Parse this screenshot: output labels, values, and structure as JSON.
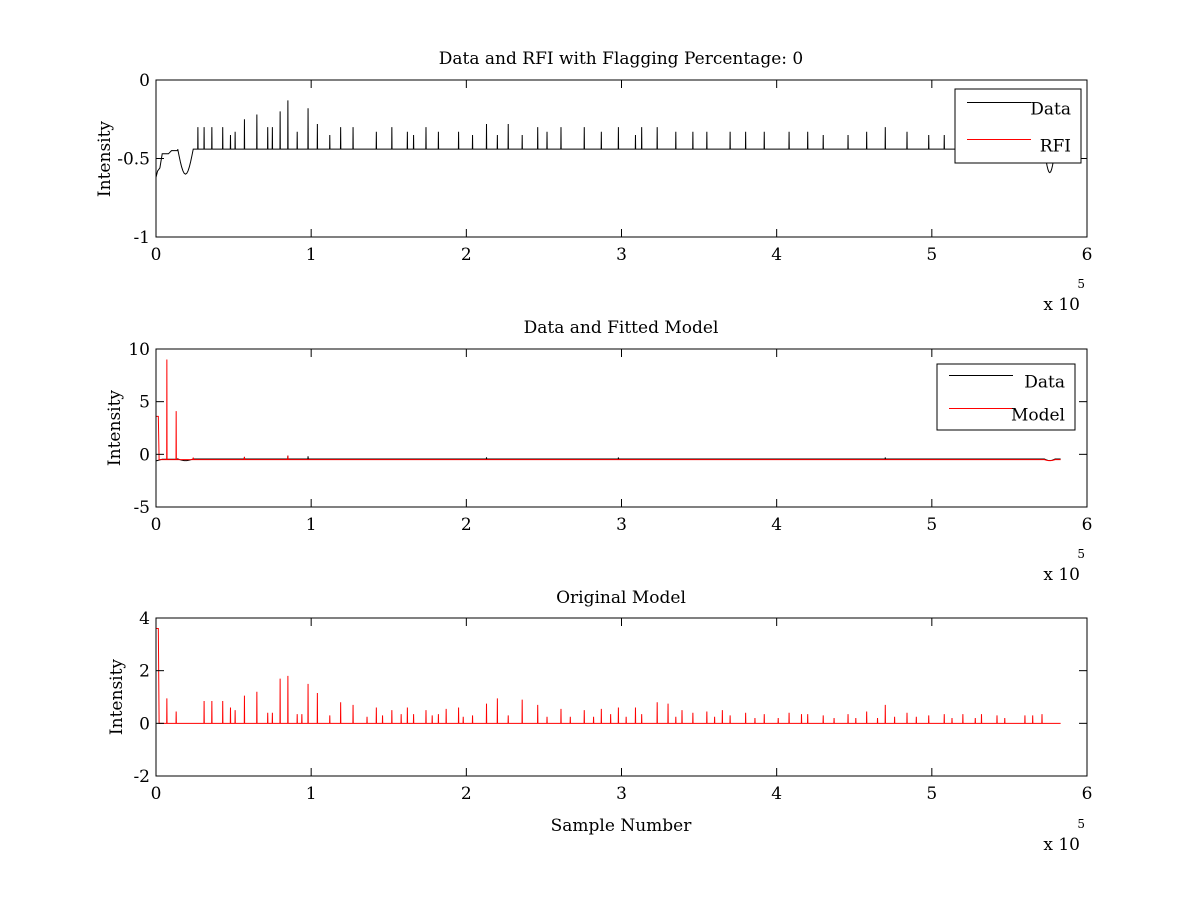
{
  "figure": {
    "background": "#ffffff"
  },
  "chart_data": [
    {
      "type": "line",
      "title": "Data and RFI with Flagging Percentage: 0",
      "xlabel": "",
      "ylabel": "Intensity",
      "xlim": [
        0,
        600000
      ],
      "ylim": [
        -1,
        0
      ],
      "xticks": [
        0,
        100000,
        200000,
        300000,
        400000,
        500000,
        600000
      ],
      "xtick_labels": [
        "0",
        "1",
        "2",
        "3",
        "4",
        "5",
        "6"
      ],
      "yticks": [
        -1,
        -0.5,
        0
      ],
      "ytick_labels": [
        "-1",
        "-0.5",
        "0"
      ],
      "x_multiplier": {
        "base": "x 10",
        "exponent": "5"
      },
      "legend": {
        "position": "top-right",
        "entries": [
          "Data",
          "RFI"
        ]
      },
      "series": [
        {
          "name": "Data",
          "color": "#000000",
          "baseline": -0.44,
          "x_end": 583000,
          "start_ramp": [
            [
              0,
              -0.62
            ],
            [
              1000,
              -0.58
            ],
            [
              2500,
              -0.56
            ],
            [
              4000,
              -0.47
            ],
            [
              8000,
              -0.47
            ],
            [
              10000,
              -0.45
            ],
            [
              14000,
              -0.45
            ]
          ],
          "dips": [
            [
              19000,
              -0.6,
              5000
            ],
            [
              576000,
              -0.59,
              3500
            ]
          ],
          "step": [
            23000,
            27500,
            -0.44
          ],
          "spikes": [
            [
              6000,
              -0.3
            ],
            [
              9000,
              -0.38
            ],
            [
              14000,
              -0.35
            ],
            [
              20000,
              -0.38
            ],
            [
              24000,
              -0.3
            ],
            [
              27000,
              -0.3
            ],
            [
              31000,
              -0.3
            ],
            [
              36000,
              -0.3
            ],
            [
              43000,
              -0.3
            ],
            [
              48000,
              -0.35
            ],
            [
              51000,
              -0.33
            ],
            [
              57000,
              -0.25
            ],
            [
              65000,
              -0.22
            ],
            [
              72000,
              -0.3
            ],
            [
              75000,
              -0.3
            ],
            [
              80000,
              -0.2
            ],
            [
              85000,
              -0.13
            ],
            [
              91000,
              -0.33
            ],
            [
              98000,
              -0.18
            ],
            [
              104000,
              -0.28
            ],
            [
              112000,
              -0.35
            ],
            [
              119000,
              -0.3
            ],
            [
              127000,
              -0.3
            ],
            [
              142000,
              -0.33
            ],
            [
              152000,
              -0.3
            ],
            [
              162000,
              -0.33
            ],
            [
              166000,
              -0.35
            ],
            [
              174000,
              -0.3
            ],
            [
              182000,
              -0.33
            ],
            [
              195000,
              -0.33
            ],
            [
              204000,
              -0.35
            ],
            [
              213000,
              -0.28
            ],
            [
              220000,
              -0.35
            ],
            [
              227000,
              -0.28
            ],
            [
              236000,
              -0.35
            ],
            [
              246000,
              -0.3
            ],
            [
              252000,
              -0.33
            ],
            [
              261000,
              -0.3
            ],
            [
              276000,
              -0.3
            ],
            [
              287000,
              -0.33
            ],
            [
              298000,
              -0.3
            ],
            [
              309000,
              -0.35
            ],
            [
              313000,
              -0.3
            ],
            [
              323000,
              -0.3
            ],
            [
              335000,
              -0.33
            ],
            [
              346000,
              -0.33
            ],
            [
              355000,
              -0.33
            ],
            [
              370000,
              -0.33
            ],
            [
              380000,
              -0.33
            ],
            [
              392000,
              -0.33
            ],
            [
              408000,
              -0.33
            ],
            [
              420000,
              -0.33
            ],
            [
              430000,
              -0.35
            ],
            [
              446000,
              -0.35
            ],
            [
              458000,
              -0.33
            ],
            [
              470000,
              -0.3
            ],
            [
              484000,
              -0.33
            ],
            [
              498000,
              -0.35
            ],
            [
              508000,
              -0.35
            ],
            [
              520000,
              -0.33
            ],
            [
              532000,
              -0.3
            ],
            [
              542000,
              -0.33
            ],
            [
              550000,
              -0.33
            ],
            [
              560000,
              -0.33
            ],
            [
              571000,
              -0.33
            ]
          ]
        },
        {
          "name": "RFI",
          "color": "#ff0000",
          "values": []
        }
      ]
    },
    {
      "type": "line",
      "title": "Data and Fitted Model",
      "xlabel": "",
      "ylabel": "Intensity",
      "xlim": [
        0,
        600000
      ],
      "ylim": [
        -5,
        10
      ],
      "xticks": [
        0,
        100000,
        200000,
        300000,
        400000,
        500000,
        600000
      ],
      "xtick_labels": [
        "0",
        "1",
        "2",
        "3",
        "4",
        "5",
        "6"
      ],
      "yticks": [
        -5,
        0,
        5,
        10
      ],
      "ytick_labels": [
        "-5",
        "0",
        "5",
        "10"
      ],
      "x_multiplier": {
        "base": "x 10",
        "exponent": "5"
      },
      "legend": {
        "position": "top-right",
        "entries": [
          "Data",
          "Model"
        ]
      },
      "series": [
        {
          "name": "Data",
          "color": "#000000",
          "baseline": -0.44,
          "x_end": 583000,
          "start_ramp": [
            [
              0,
              -0.62
            ],
            [
              4000,
              -0.47
            ],
            [
              14000,
              -0.45
            ]
          ],
          "dips": [
            [
              19000,
              -0.6,
              5000
            ],
            [
              576000,
              -0.59,
              3500
            ]
          ],
          "step": [
            23000,
            27500,
            -0.44
          ],
          "spikes": [
            [
              57000,
              -0.25
            ],
            [
              85000,
              -0.13
            ],
            [
              98000,
              -0.18
            ],
            [
              213000,
              -0.28
            ],
            [
              298000,
              -0.3
            ],
            [
              470000,
              -0.3
            ]
          ]
        },
        {
          "name": "Model",
          "color": "#ff0000",
          "baseline": -0.5,
          "x_end": 583000,
          "start_ramp": [
            [
              0,
              3.6
            ],
            [
              1500,
              3.6
            ],
            [
              2000,
              -0.5
            ]
          ],
          "dips": [
            [
              576000,
              -0.6,
              3500
            ]
          ],
          "spikes": [
            [
              7000,
              9.0
            ],
            [
              13000,
              4.1
            ],
            [
              24000,
              -0.3
            ],
            [
              57000,
              -0.25
            ],
            [
              85000,
              -0.13
            ]
          ]
        }
      ]
    },
    {
      "type": "line",
      "title": "Original Model",
      "xlabel": "Sample Number",
      "ylabel": "Intensity",
      "xlim": [
        0,
        600000
      ],
      "ylim": [
        -2,
        4
      ],
      "xticks": [
        0,
        100000,
        200000,
        300000,
        400000,
        500000,
        600000
      ],
      "xtick_labels": [
        "0",
        "1",
        "2",
        "3",
        "4",
        "5",
        "6"
      ],
      "yticks": [
        -2,
        0,
        2,
        4
      ],
      "ytick_labels": [
        "-2",
        "0",
        "2",
        "4"
      ],
      "x_multiplier": {
        "base": "x 10",
        "exponent": "5"
      },
      "series": [
        {
          "name": "Original Model",
          "color": "#ff0000",
          "baseline": 0,
          "x_end": 583000,
          "start_ramp": [
            [
              0,
              3.6
            ],
            [
              1500,
              3.6
            ],
            [
              2000,
              0
            ]
          ],
          "spikes": [
            [
              7000,
              0.95
            ],
            [
              13000,
              0.45
            ],
            [
              31000,
              0.85
            ],
            [
              36000,
              0.85
            ],
            [
              43000,
              0.85
            ],
            [
              48000,
              0.6
            ],
            [
              51000,
              0.5
            ],
            [
              57000,
              1.05
            ],
            [
              65000,
              1.2
            ],
            [
              72000,
              0.4
            ],
            [
              75000,
              0.4
            ],
            [
              80000,
              1.7
            ],
            [
              85000,
              1.8
            ],
            [
              91000,
              0.35
            ],
            [
              94000,
              0.35
            ],
            [
              98000,
              1.5
            ],
            [
              104000,
              1.15
            ],
            [
              112000,
              0.3
            ],
            [
              119000,
              0.8
            ],
            [
              127000,
              0.7
            ],
            [
              136000,
              0.25
            ],
            [
              142000,
              0.6
            ],
            [
              146000,
              0.3
            ],
            [
              152000,
              0.5
            ],
            [
              158000,
              0.35
            ],
            [
              162000,
              0.6
            ],
            [
              166000,
              0.35
            ],
            [
              174000,
              0.5
            ],
            [
              178000,
              0.3
            ],
            [
              182000,
              0.35
            ],
            [
              187000,
              0.55
            ],
            [
              195000,
              0.6
            ],
            [
              198000,
              0.25
            ],
            [
              204000,
              0.3
            ],
            [
              213000,
              0.75
            ],
            [
              220000,
              0.95
            ],
            [
              227000,
              0.3
            ],
            [
              236000,
              0.9
            ],
            [
              246000,
              0.7
            ],
            [
              252000,
              0.25
            ],
            [
              261000,
              0.55
            ],
            [
              267000,
              0.25
            ],
            [
              276000,
              0.5
            ],
            [
              282000,
              0.25
            ],
            [
              287000,
              0.55
            ],
            [
              293000,
              0.35
            ],
            [
              298000,
              0.6
            ],
            [
              303000,
              0.25
            ],
            [
              309000,
              0.6
            ],
            [
              313000,
              0.35
            ],
            [
              323000,
              0.8
            ],
            [
              330000,
              0.75
            ],
            [
              335000,
              0.25
            ],
            [
              339000,
              0.5
            ],
            [
              346000,
              0.4
            ],
            [
              355000,
              0.45
            ],
            [
              360000,
              0.25
            ],
            [
              365000,
              0.5
            ],
            [
              370000,
              0.3
            ],
            [
              380000,
              0.4
            ],
            [
              386000,
              0.2
            ],
            [
              392000,
              0.35
            ],
            [
              401000,
              0.2
            ],
            [
              408000,
              0.4
            ],
            [
              416000,
              0.35
            ],
            [
              420000,
              0.35
            ],
            [
              430000,
              0.3
            ],
            [
              437000,
              0.2
            ],
            [
              446000,
              0.35
            ],
            [
              451000,
              0.2
            ],
            [
              458000,
              0.45
            ],
            [
              465000,
              0.2
            ],
            [
              470000,
              0.7
            ],
            [
              476000,
              0.25
            ],
            [
              484000,
              0.4
            ],
            [
              490000,
              0.25
            ],
            [
              498000,
              0.3
            ],
            [
              508000,
              0.35
            ],
            [
              513000,
              0.2
            ],
            [
              520000,
              0.35
            ],
            [
              528000,
              0.2
            ],
            [
              532000,
              0.35
            ],
            [
              542000,
              0.3
            ],
            [
              547000,
              0.2
            ],
            [
              560000,
              0.3
            ],
            [
              565000,
              0.3
            ],
            [
              571000,
              0.35
            ]
          ]
        }
      ]
    }
  ]
}
